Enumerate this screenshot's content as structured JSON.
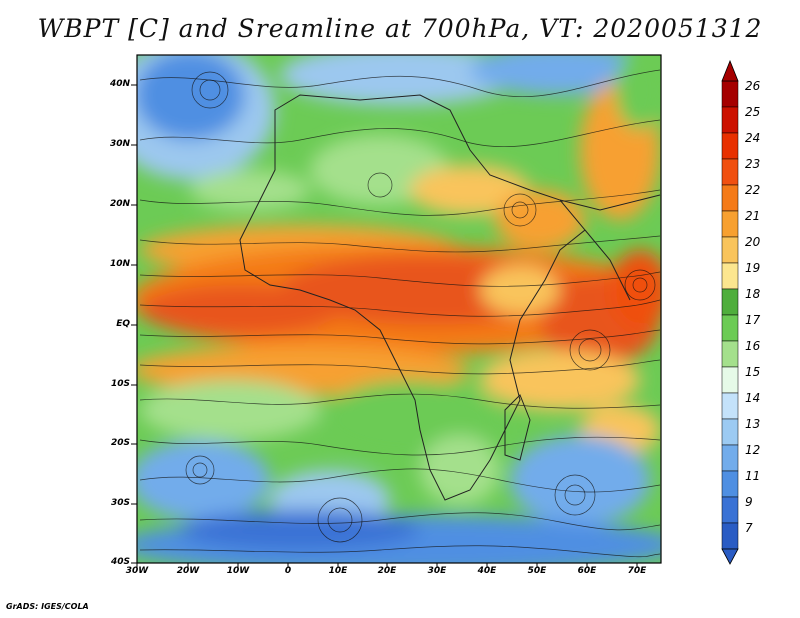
{
  "title": "WBPT [C] and Sreamline at 700hPa, VT: 2020051312",
  "latitude_labels": [
    "40N",
    "30N",
    "20N",
    "10N",
    "EQ",
    "10S",
    "20S",
    "30S",
    "40S"
  ],
  "longitude_labels": [
    "30W",
    "20W",
    "10W",
    "0",
    "10E",
    "20E",
    "30E",
    "40E",
    "50E",
    "60E",
    "70E"
  ],
  "colorbar": {
    "labels": [
      "26",
      "25",
      "24",
      "23",
      "22",
      "21",
      "20",
      "19",
      "18",
      "17",
      "16",
      "15",
      "14",
      "13",
      "12",
      "11",
      "9",
      "7"
    ],
    "colors": [
      "#a50000",
      "#cc1100",
      "#e83000",
      "#f05010",
      "#f47a18",
      "#f7a030",
      "#f9c45c",
      "#fce68f",
      "#4fae3c",
      "#6ccb55",
      "#a4e08c",
      "#e6fae8",
      "#c4e2fa",
      "#9ccaf2",
      "#72aceb",
      "#4f8fe2",
      "#3a72d5",
      "#2a5cc4"
    ]
  },
  "map_colors": {
    "cold": "#3f79d6",
    "cool": "#9cc8ef",
    "mild": "#6ccb55",
    "warm": "#f5a33a",
    "hot": "#e8541a"
  },
  "credit": "GrADS: IGES/COLA"
}
